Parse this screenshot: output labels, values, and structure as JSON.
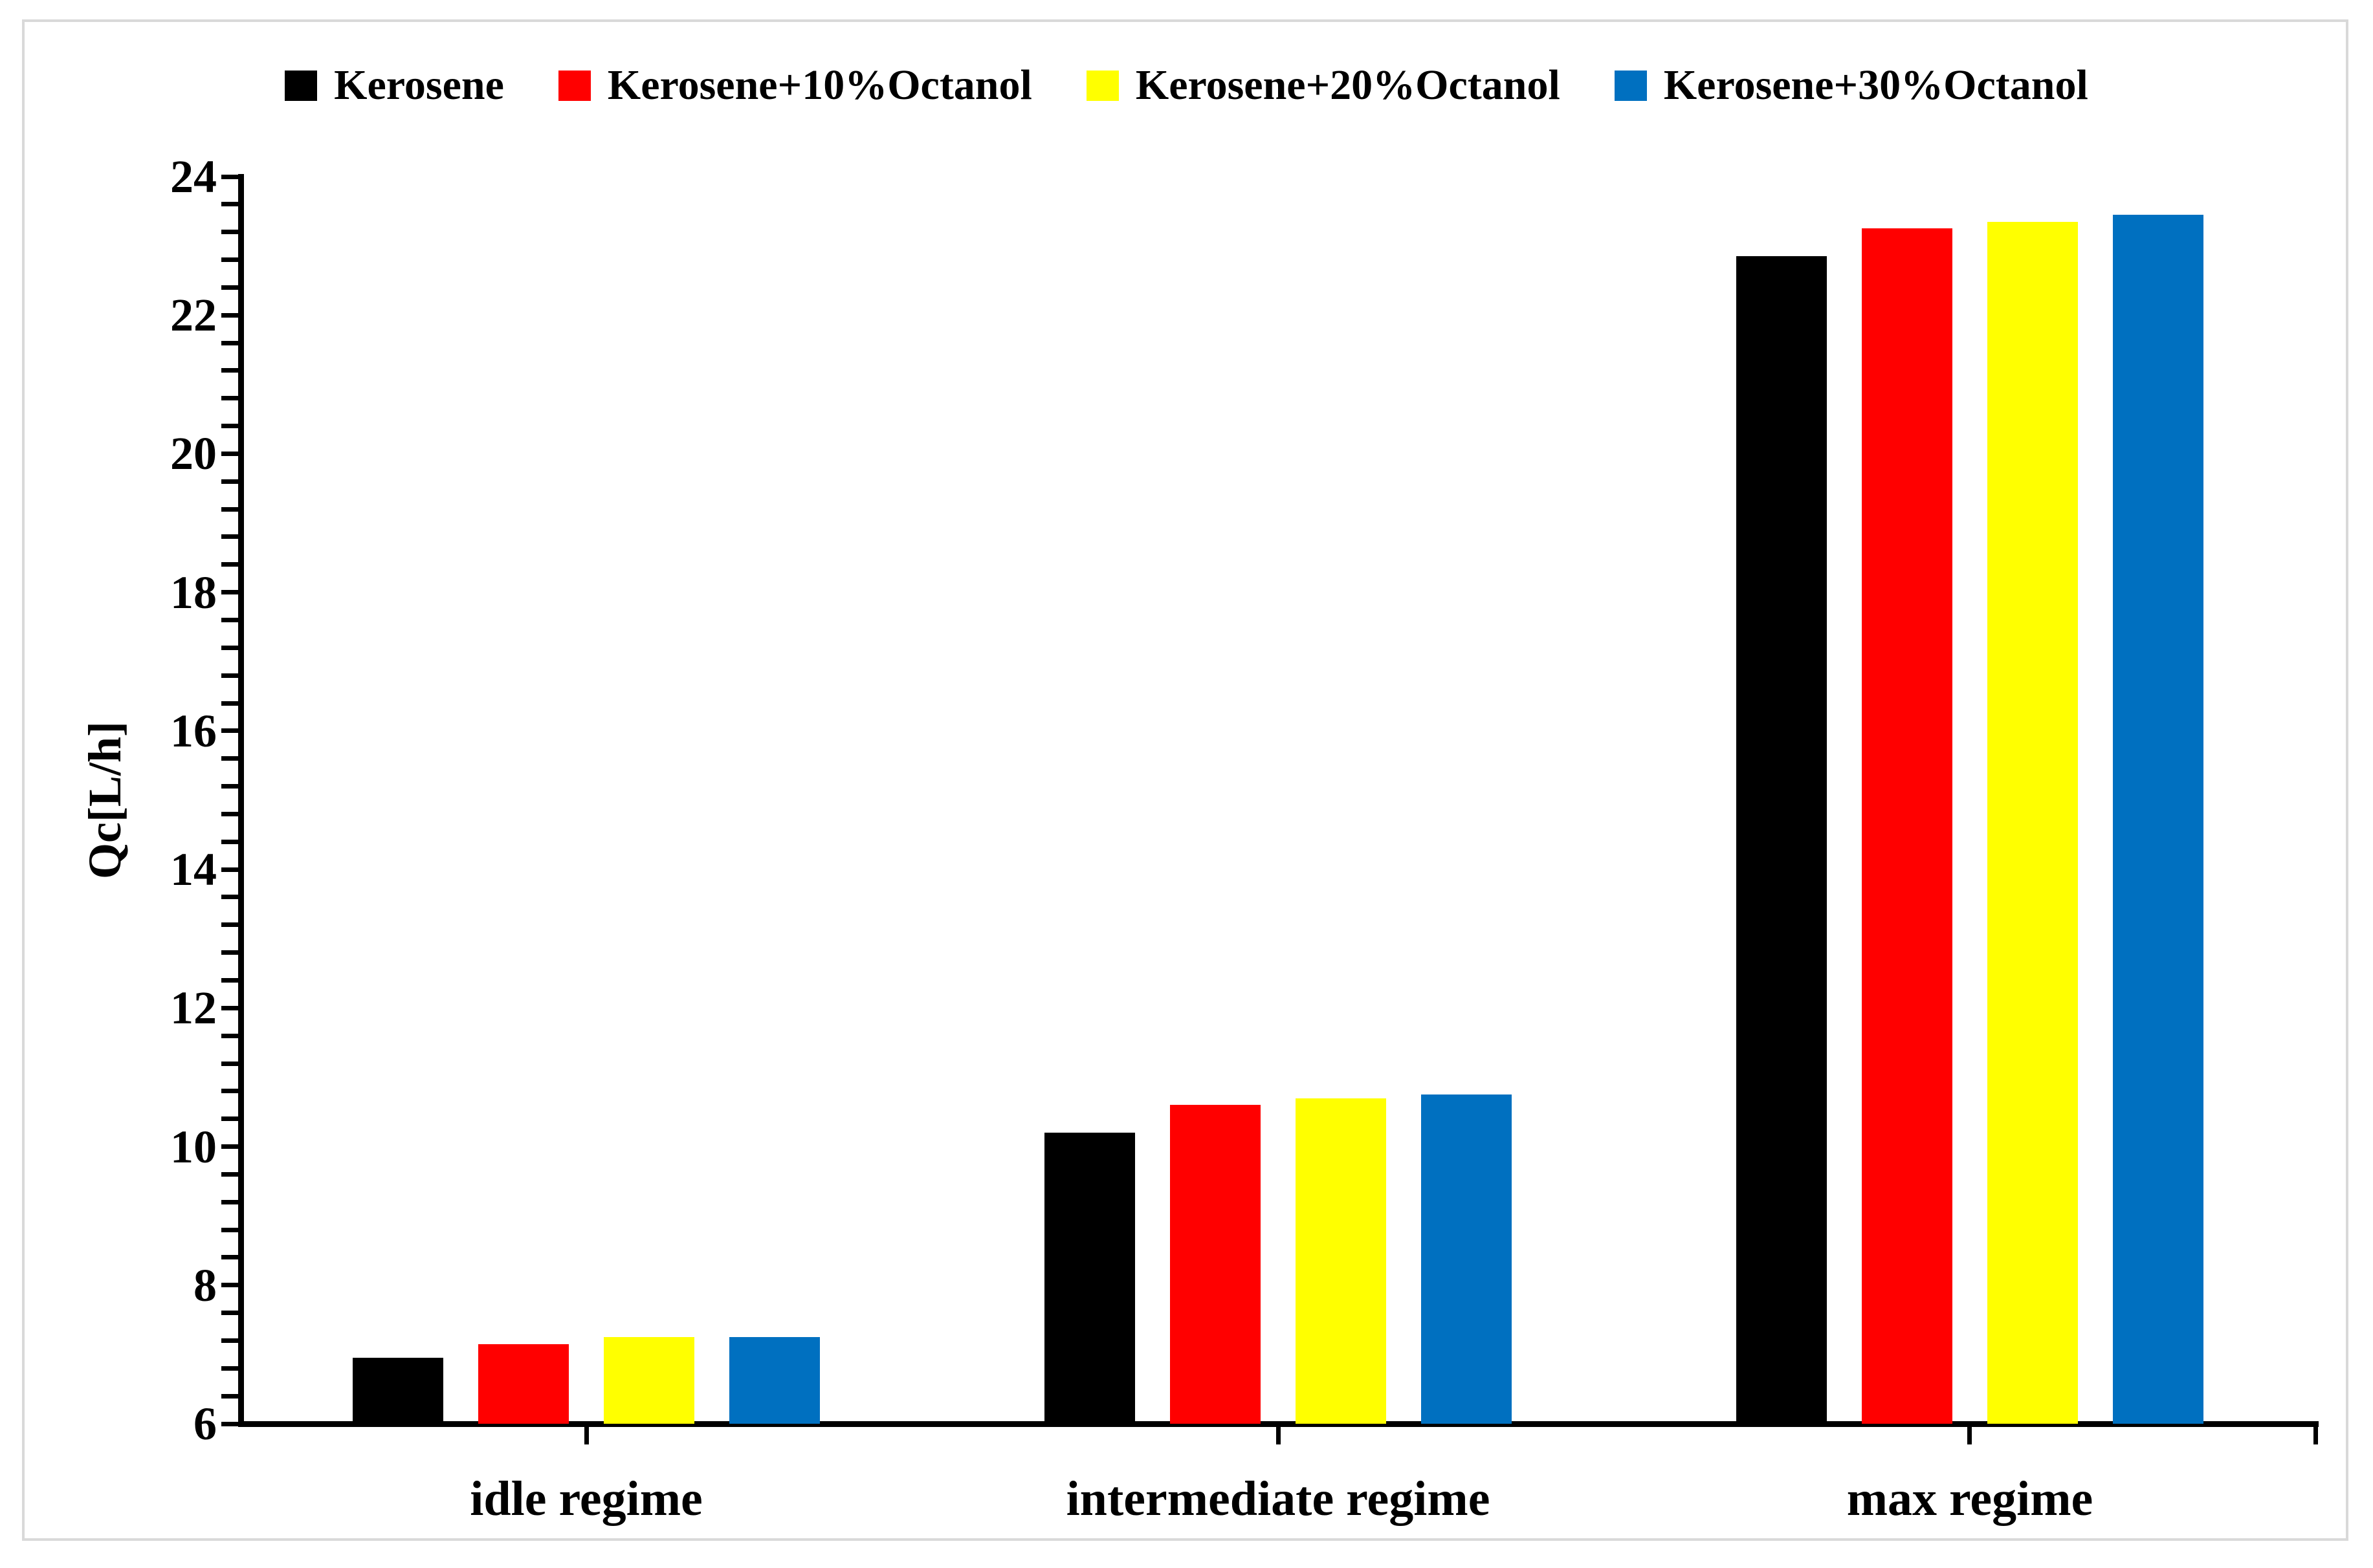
{
  "figure": {
    "background_color": "#ffffff",
    "border_color": "#d9d9d9",
    "axis_color": "#000000",
    "text_color": "#000000"
  },
  "chart_data": {
    "type": "bar",
    "title": "",
    "xlabel": "",
    "ylabel": "Qc[L/h]",
    "categories": [
      "idle regime",
      "intermediate regime",
      "max regime"
    ],
    "series": [
      {
        "name": "Kerosene",
        "color": "#000000",
        "values": [
          6.95,
          10.2,
          22.85
        ]
      },
      {
        "name": "Kerosene+10%Octanol",
        "color": "#ff0000",
        "values": [
          7.15,
          10.6,
          23.25
        ]
      },
      {
        "name": "Kerosene+20%Octanol",
        "color": "#ffff00",
        "values": [
          7.25,
          10.7,
          23.35
        ]
      },
      {
        "name": "Kerosene+30%Octanol",
        "color": "#0070c0",
        "values": [
          7.25,
          10.75,
          23.45
        ]
      }
    ],
    "ylim": [
      6,
      24
    ],
    "y_major_tick": 2,
    "y_minor_tick": 0.4,
    "y_tick_labels": [
      "6",
      "8",
      "10",
      "12",
      "14",
      "16",
      "18",
      "20",
      "22",
      "24"
    ],
    "grid": "off",
    "legend_position": "top"
  }
}
